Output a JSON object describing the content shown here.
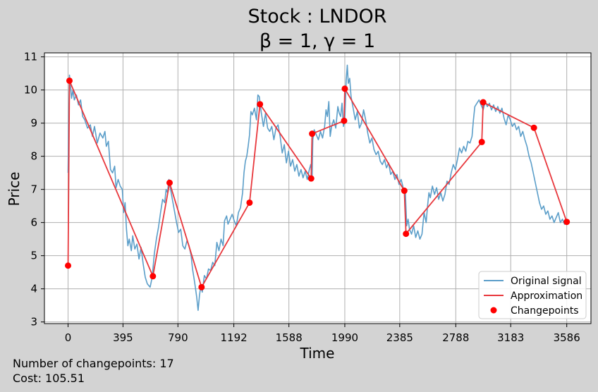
{
  "chart_data": {
    "type": "line",
    "title_line1": "Stock : LNDOR",
    "title_line2": "β = 1, γ = 1",
    "xlabel": "Time",
    "ylabel": "Price",
    "xlim": [
      -170,
      3760
    ],
    "ylim": [
      2.95,
      11.12
    ],
    "xticks": [
      0,
      395,
      790,
      1192,
      1588,
      1990,
      2385,
      2788,
      3183,
      3586
    ],
    "yticks": [
      3,
      4,
      5,
      6,
      7,
      8,
      9,
      10,
      11
    ],
    "grid": true,
    "legend_position": "lower-right",
    "colors": {
      "signal": "#5b9ec9",
      "approximation": "#e8383d",
      "changepoints": "#ff0000",
      "background": "#d3d3d3",
      "plot_bg": "#ffffff",
      "grid": "#b0b0b0"
    },
    "series": [
      {
        "name": "Original signal",
        "style": "line",
        "points": [
          [
            0,
            7.5
          ],
          [
            5,
            9.2
          ],
          [
            10,
            10.45
          ],
          [
            18,
            10.1
          ],
          [
            25,
            9.75
          ],
          [
            35,
            10.0
          ],
          [
            45,
            9.7
          ],
          [
            60,
            9.85
          ],
          [
            75,
            9.55
          ],
          [
            90,
            9.7
          ],
          [
            105,
            9.2
          ],
          [
            120,
            9.1
          ],
          [
            140,
            8.85
          ],
          [
            160,
            8.95
          ],
          [
            175,
            8.6
          ],
          [
            190,
            8.9
          ],
          [
            210,
            8.4
          ],
          [
            230,
            8.7
          ],
          [
            250,
            8.55
          ],
          [
            265,
            8.75
          ],
          [
            275,
            8.3
          ],
          [
            290,
            8.45
          ],
          [
            305,
            7.6
          ],
          [
            320,
            7.5
          ],
          [
            335,
            7.7
          ],
          [
            345,
            7.05
          ],
          [
            360,
            7.3
          ],
          [
            375,
            7.1
          ],
          [
            390,
            7.0
          ],
          [
            400,
            6.3
          ],
          [
            410,
            6.6
          ],
          [
            420,
            5.8
          ],
          [
            430,
            5.3
          ],
          [
            440,
            5.5
          ],
          [
            455,
            5.15
          ],
          [
            465,
            5.6
          ],
          [
            480,
            5.2
          ],
          [
            495,
            5.35
          ],
          [
            510,
            4.9
          ],
          [
            525,
            5.25
          ],
          [
            540,
            4.75
          ],
          [
            555,
            4.35
          ],
          [
            570,
            4.15
          ],
          [
            590,
            4.05
          ],
          [
            605,
            4.35
          ],
          [
            620,
            5.05
          ],
          [
            635,
            5.5
          ],
          [
            650,
            5.85
          ],
          [
            665,
            6.3
          ],
          [
            680,
            6.7
          ],
          [
            695,
            6.6
          ],
          [
            705,
            7.0
          ],
          [
            715,
            6.9
          ],
          [
            725,
            7.3
          ],
          [
            735,
            7.05
          ],
          [
            750,
            6.7
          ],
          [
            765,
            6.35
          ],
          [
            780,
            6.0
          ],
          [
            795,
            5.7
          ],
          [
            810,
            5.8
          ],
          [
            825,
            5.3
          ],
          [
            840,
            5.2
          ],
          [
            855,
            5.45
          ],
          [
            870,
            5.3
          ],
          [
            885,
            5.0
          ],
          [
            895,
            4.6
          ],
          [
            910,
            4.2
          ],
          [
            925,
            3.75
          ],
          [
            935,
            3.35
          ],
          [
            945,
            3.8
          ],
          [
            955,
            4.1
          ],
          [
            965,
            3.9
          ],
          [
            980,
            4.4
          ],
          [
            995,
            4.3
          ],
          [
            1010,
            4.6
          ],
          [
            1025,
            4.55
          ],
          [
            1040,
            4.8
          ],
          [
            1055,
            4.7
          ],
          [
            1070,
            5.4
          ],
          [
            1085,
            5.15
          ],
          [
            1100,
            5.5
          ],
          [
            1115,
            5.3
          ],
          [
            1125,
            6.05
          ],
          [
            1140,
            6.2
          ],
          [
            1150,
            5.95
          ],
          [
            1165,
            6.1
          ],
          [
            1180,
            6.25
          ],
          [
            1195,
            6.05
          ],
          [
            1210,
            5.9
          ],
          [
            1225,
            6.3
          ],
          [
            1240,
            6.45
          ],
          [
            1255,
            6.9
          ],
          [
            1265,
            7.5
          ],
          [
            1275,
            7.85
          ],
          [
            1285,
            8.0
          ],
          [
            1295,
            8.3
          ],
          [
            1305,
            8.65
          ],
          [
            1315,
            9.35
          ],
          [
            1325,
            9.25
          ],
          [
            1340,
            9.45
          ],
          [
            1355,
            9.1
          ],
          [
            1365,
            9.85
          ],
          [
            1375,
            9.8
          ],
          [
            1390,
            9.3
          ],
          [
            1405,
            8.9
          ],
          [
            1420,
            9.3
          ],
          [
            1435,
            8.85
          ],
          [
            1450,
            8.75
          ],
          [
            1465,
            8.9
          ],
          [
            1480,
            8.5
          ],
          [
            1495,
            8.85
          ],
          [
            1510,
            8.95
          ],
          [
            1525,
            8.6
          ],
          [
            1540,
            8.1
          ],
          [
            1555,
            8.35
          ],
          [
            1570,
            7.8
          ],
          [
            1585,
            8.15
          ],
          [
            1600,
            7.7
          ],
          [
            1615,
            7.9
          ],
          [
            1630,
            7.55
          ],
          [
            1645,
            7.75
          ],
          [
            1660,
            7.4
          ],
          [
            1675,
            7.6
          ],
          [
            1690,
            7.35
          ],
          [
            1705,
            7.55
          ],
          [
            1720,
            7.3
          ],
          [
            1735,
            7.6
          ],
          [
            1745,
            7.75
          ],
          [
            1755,
            7.4
          ],
          [
            1760,
            8.5
          ],
          [
            1770,
            8.8
          ],
          [
            1785,
            8.65
          ],
          [
            1800,
            8.5
          ],
          [
            1815,
            8.75
          ],
          [
            1830,
            8.55
          ],
          [
            1845,
            8.9
          ],
          [
            1855,
            9.4
          ],
          [
            1865,
            9.2
          ],
          [
            1875,
            9.65
          ],
          [
            1885,
            8.6
          ],
          [
            1895,
            8.9
          ],
          [
            1910,
            9.1
          ],
          [
            1925,
            8.85
          ],
          [
            1940,
            9.5
          ],
          [
            1950,
            9.3
          ],
          [
            1960,
            9.2
          ],
          [
            1970,
            9.6
          ],
          [
            1980,
            8.9
          ],
          [
            1990,
            9.1
          ],
          [
            2000,
            10.3
          ],
          [
            2008,
            10.75
          ],
          [
            2015,
            10.2
          ],
          [
            2025,
            10.35
          ],
          [
            2035,
            9.8
          ],
          [
            2050,
            9.45
          ],
          [
            2065,
            9.1
          ],
          [
            2080,
            9.35
          ],
          [
            2095,
            8.85
          ],
          [
            2110,
            9.0
          ],
          [
            2125,
            9.4
          ],
          [
            2140,
            9.1
          ],
          [
            2155,
            8.7
          ],
          [
            2170,
            8.4
          ],
          [
            2185,
            8.55
          ],
          [
            2200,
            8.2
          ],
          [
            2215,
            8.05
          ],
          [
            2230,
            8.15
          ],
          [
            2245,
            7.85
          ],
          [
            2260,
            7.75
          ],
          [
            2275,
            7.9
          ],
          [
            2290,
            7.65
          ],
          [
            2305,
            7.8
          ],
          [
            2320,
            7.45
          ],
          [
            2335,
            7.55
          ],
          [
            2350,
            7.3
          ],
          [
            2365,
            7.45
          ],
          [
            2380,
            7.15
          ],
          [
            2395,
            7.3
          ],
          [
            2410,
            7.05
          ],
          [
            2425,
            6.95
          ],
          [
            2435,
            5.9
          ],
          [
            2445,
            6.1
          ],
          [
            2455,
            5.8
          ],
          [
            2470,
            5.65
          ],
          [
            2485,
            5.9
          ],
          [
            2500,
            5.55
          ],
          [
            2515,
            5.75
          ],
          [
            2530,
            5.5
          ],
          [
            2545,
            5.65
          ],
          [
            2560,
            6.3
          ],
          [
            2575,
            6.0
          ],
          [
            2585,
            6.5
          ],
          [
            2595,
            6.9
          ],
          [
            2605,
            6.75
          ],
          [
            2620,
            7.1
          ],
          [
            2635,
            6.85
          ],
          [
            2650,
            7.05
          ],
          [
            2665,
            6.7
          ],
          [
            2680,
            6.9
          ],
          [
            2695,
            6.65
          ],
          [
            2710,
            6.85
          ],
          [
            2725,
            7.25
          ],
          [
            2740,
            7.15
          ],
          [
            2755,
            7.5
          ],
          [
            2770,
            7.75
          ],
          [
            2785,
            7.6
          ],
          [
            2800,
            7.9
          ],
          [
            2815,
            8.25
          ],
          [
            2830,
            8.1
          ],
          [
            2845,
            8.3
          ],
          [
            2860,
            8.15
          ],
          [
            2875,
            8.45
          ],
          [
            2890,
            8.4
          ],
          [
            2905,
            8.6
          ],
          [
            2915,
            9.1
          ],
          [
            2925,
            9.5
          ],
          [
            2940,
            9.6
          ],
          [
            2955,
            9.7
          ],
          [
            2970,
            9.55
          ],
          [
            2985,
            9.4
          ],
          [
            3000,
            9.65
          ],
          [
            3015,
            9.5
          ],
          [
            3030,
            9.6
          ],
          [
            3045,
            9.4
          ],
          [
            3060,
            9.55
          ],
          [
            3075,
            9.35
          ],
          [
            3090,
            9.5
          ],
          [
            3105,
            9.3
          ],
          [
            3120,
            9.45
          ],
          [
            3135,
            9.15
          ],
          [
            3150,
            8.95
          ],
          [
            3165,
            9.25
          ],
          [
            3180,
            9.1
          ],
          [
            3195,
            8.9
          ],
          [
            3210,
            9.0
          ],
          [
            3225,
            8.8
          ],
          [
            3240,
            8.9
          ],
          [
            3255,
            8.6
          ],
          [
            3270,
            8.75
          ],
          [
            3285,
            8.5
          ],
          [
            3300,
            8.3
          ],
          [
            3315,
            8.0
          ],
          [
            3330,
            7.8
          ],
          [
            3345,
            7.5
          ],
          [
            3360,
            7.2
          ],
          [
            3375,
            6.9
          ],
          [
            3390,
            6.6
          ],
          [
            3405,
            6.4
          ],
          [
            3420,
            6.5
          ],
          [
            3435,
            6.25
          ],
          [
            3450,
            6.35
          ],
          [
            3465,
            6.1
          ],
          [
            3480,
            6.2
          ],
          [
            3495,
            6.0
          ],
          [
            3510,
            6.15
          ],
          [
            3525,
            6.3
          ],
          [
            3540,
            6.0
          ],
          [
            3555,
            6.1
          ],
          [
            3570,
            5.95
          ],
          [
            3586,
            6.0
          ]
        ]
      },
      {
        "name": "Approximation",
        "style": "line",
        "points": [
          [
            0,
            4.7
          ],
          [
            10,
            10.28
          ],
          [
            610,
            4.38
          ],
          [
            730,
            7.2
          ],
          [
            960,
            4.05
          ],
          [
            1305,
            6.6
          ],
          [
            1380,
            9.57
          ],
          [
            1748,
            7.33
          ],
          [
            1755,
            8.68
          ],
          [
            1985,
            9.07
          ],
          [
            1990,
            10.04
          ],
          [
            2418,
            6.96
          ],
          [
            2430,
            5.66
          ],
          [
            2975,
            8.43
          ],
          [
            2985,
            9.63
          ],
          [
            3350,
            8.86
          ],
          [
            3586,
            6.02
          ]
        ]
      },
      {
        "name": "Changepoints",
        "style": "scatter",
        "points": [
          [
            0,
            4.7
          ],
          [
            10,
            10.28
          ],
          [
            610,
            4.38
          ],
          [
            730,
            7.2
          ],
          [
            960,
            4.05
          ],
          [
            1305,
            6.6
          ],
          [
            1380,
            9.57
          ],
          [
            1748,
            7.33
          ],
          [
            1755,
            8.68
          ],
          [
            1985,
            9.07
          ],
          [
            1990,
            10.04
          ],
          [
            2418,
            6.96
          ],
          [
            2430,
            5.66
          ],
          [
            2975,
            8.43
          ],
          [
            2985,
            9.63
          ],
          [
            3350,
            8.86
          ],
          [
            3586,
            6.02
          ]
        ]
      }
    ]
  },
  "footer": {
    "changepoints_text": "Number of changepoints: 17",
    "cost_text": "Cost: 105.51"
  }
}
